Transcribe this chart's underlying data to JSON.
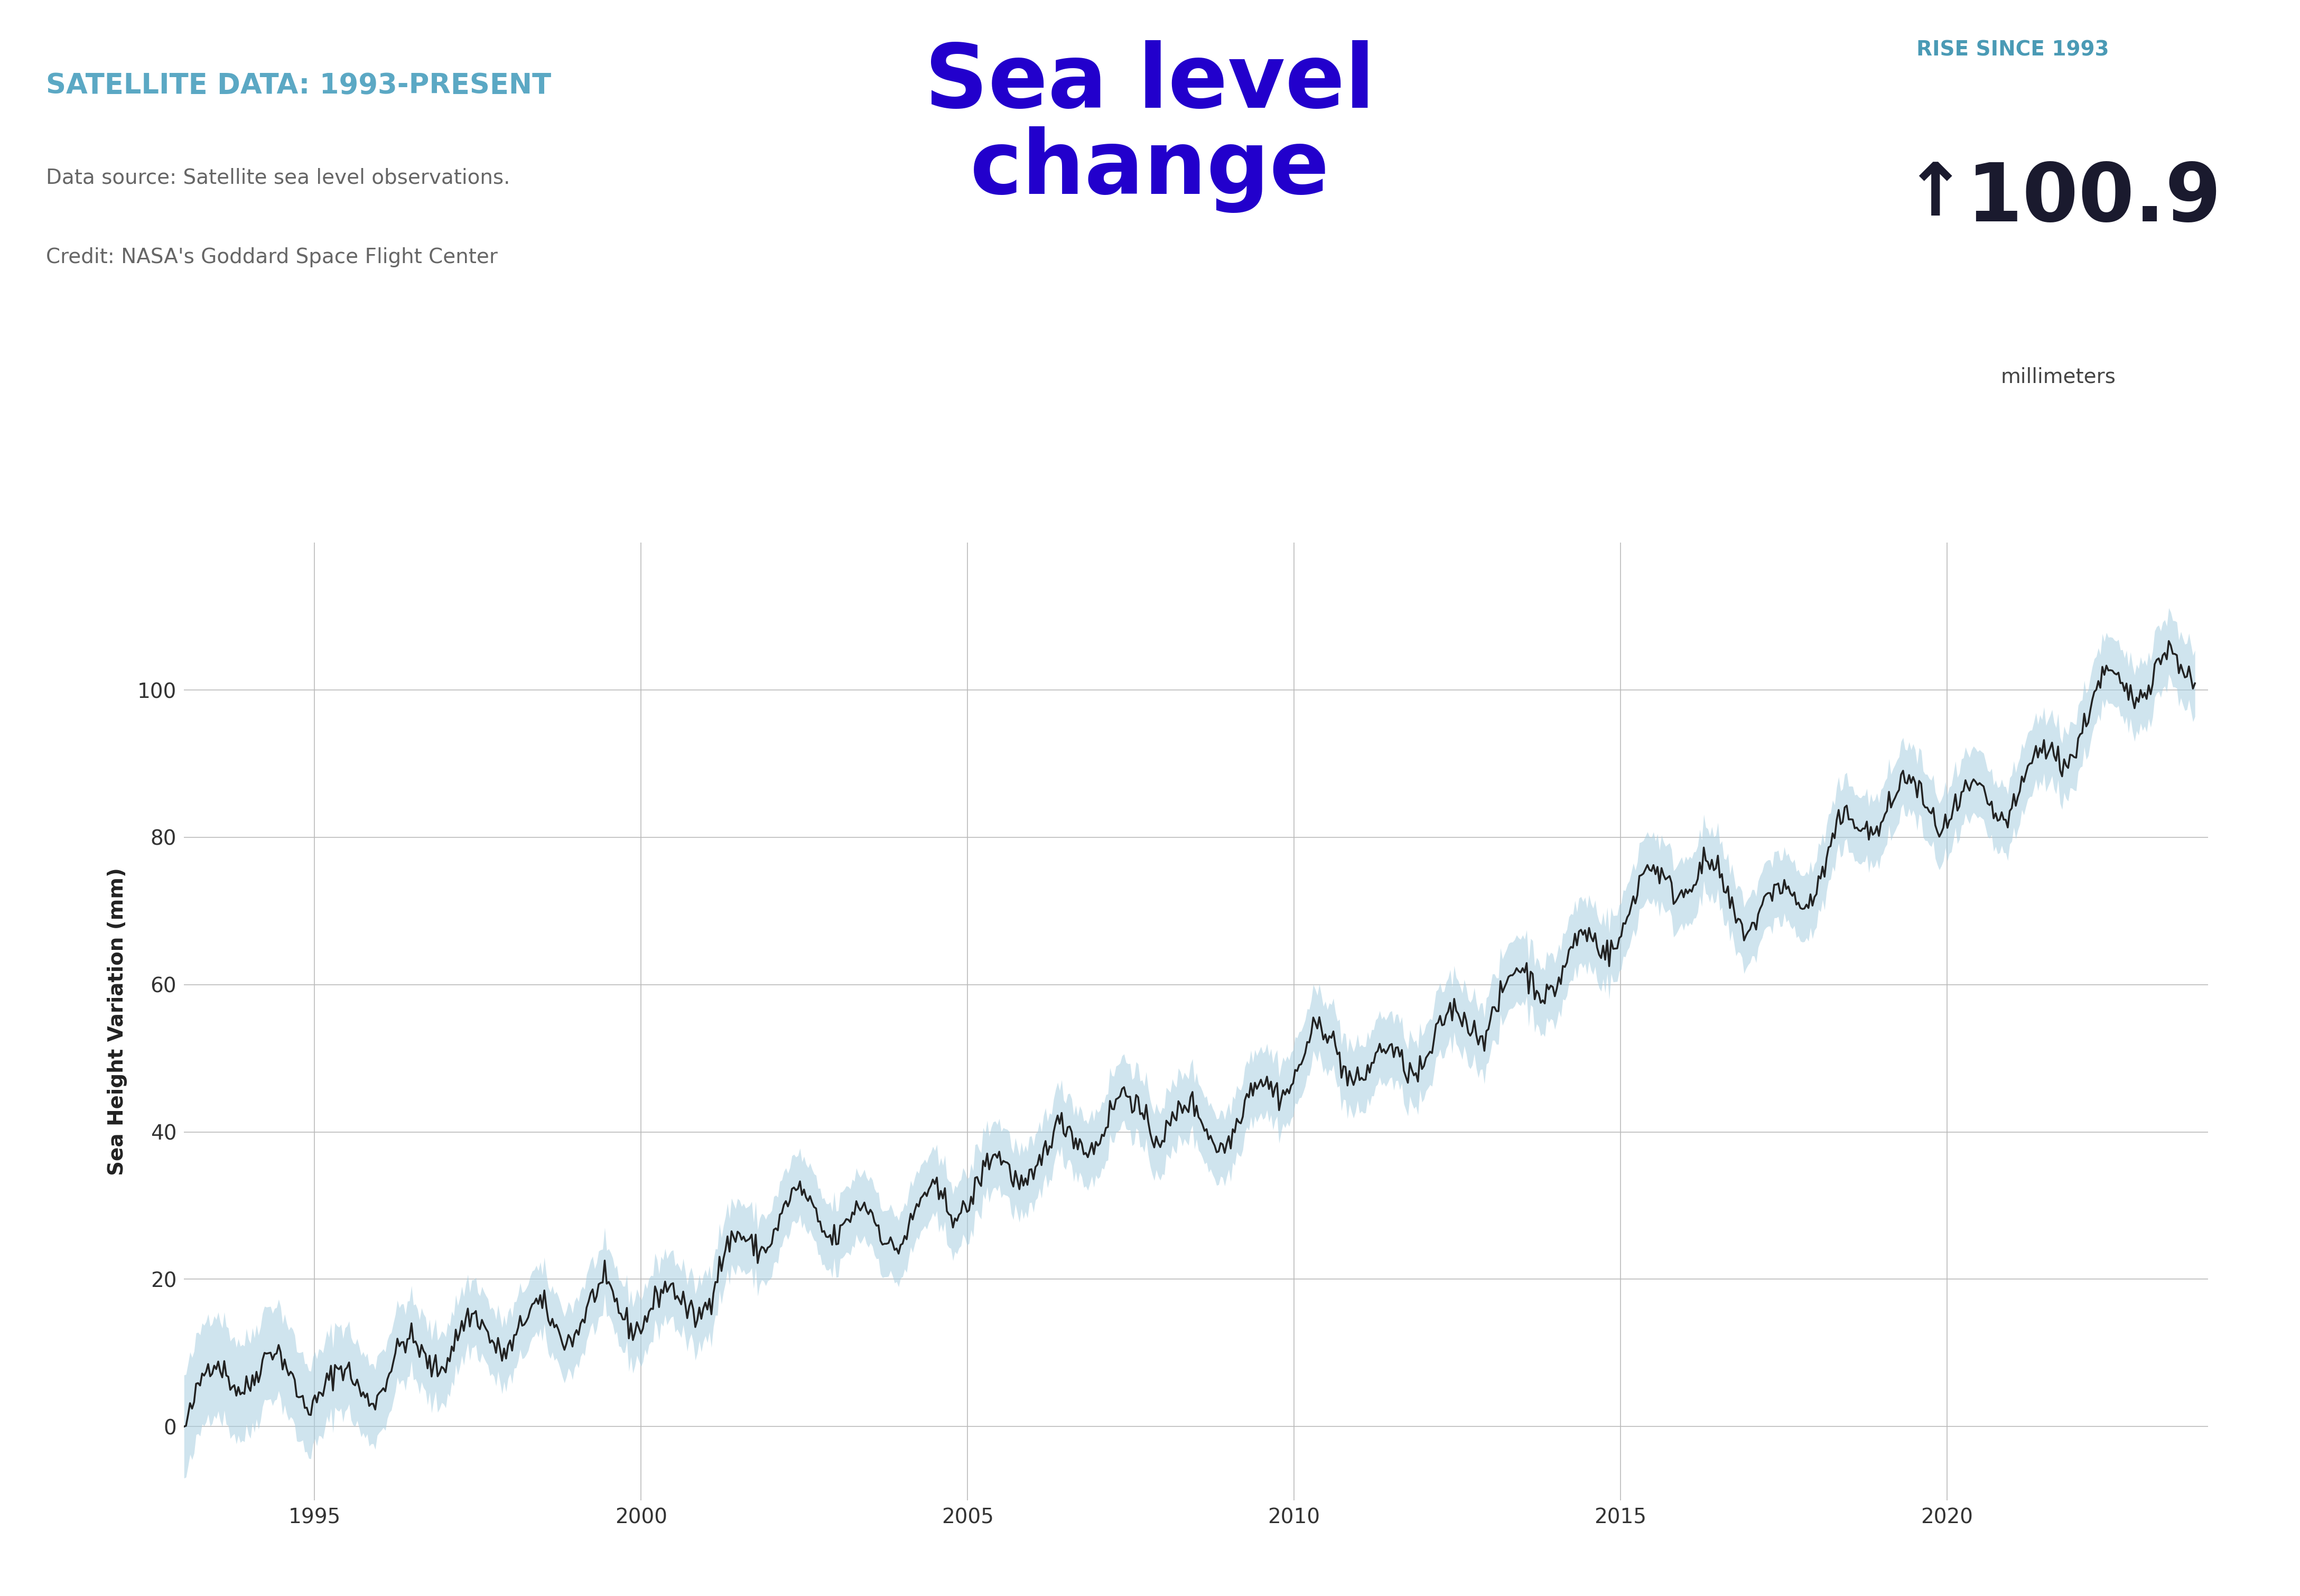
{
  "title_main": "Sea level\nchange",
  "title_main_color": "#2200cc",
  "subtitle_tag": "SATELLITE DATA: 1993-PRESENT",
  "subtitle_tag_color": "#5ba8c4",
  "source_line1": "Data source: Satellite sea level observations.",
  "source_line2": "Credit: NASA's Goddard Space Flight Center",
  "source_color": "#666666",
  "rise_label": "RISE SINCE 1993",
  "rise_label_color": "#4a9ab5",
  "rise_value": "100.9",
  "rise_value_color": "#1a1a2e",
  "rise_unit": "millimeters",
  "rise_unit_color": "#444444",
  "ylabel": "Sea Height Variation (mm)",
  "ylabel_color": "#222222",
  "line_color": "#222222",
  "fill_color": "#a8cfe0",
  "fill_alpha": 0.55,
  "grid_color": "#bbbbbb",
  "bg_color": "#ffffff",
  "ylim": [
    -10,
    120
  ],
  "yticks": [
    0,
    20,
    40,
    60,
    80,
    100
  ],
  "xlim": [
    1993.0,
    2024.0
  ],
  "xticks": [
    1995,
    2000,
    2005,
    2010,
    2015,
    2020
  ]
}
